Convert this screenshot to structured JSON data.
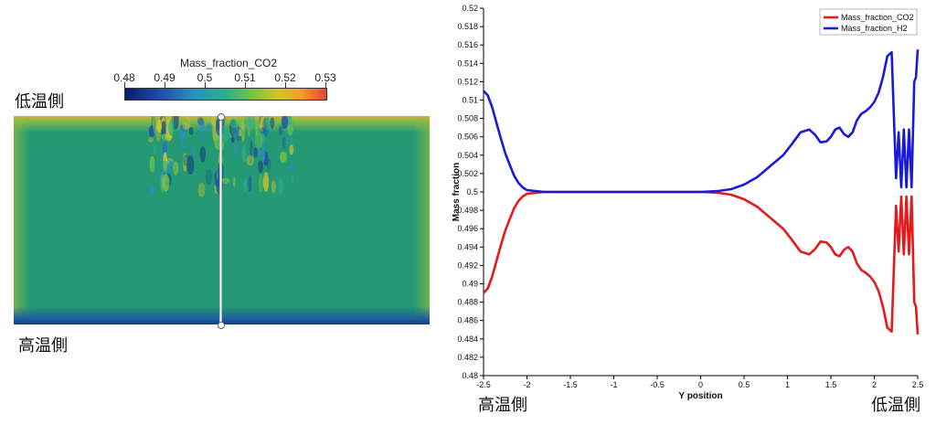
{
  "left_view": {
    "colorbar": {
      "title": "Mass_fraction_CO2",
      "ticks": [
        "0.48",
        "0.49",
        "0.5",
        "0.51",
        "0.52",
        "0.53"
      ]
    },
    "label_top": "低温側",
    "label_bottom": "高温側"
  },
  "chart_labels": {
    "left_end": "高温側",
    "right_end": "低温側"
  },
  "chart_data": {
    "type": "line",
    "title": "",
    "xlabel": "Y position",
    "ylabel": "Mass fraction",
    "xlim": [
      -2.5,
      2.5
    ],
    "ylim": [
      0.48,
      0.52
    ],
    "xticks": [
      "-2.5",
      "-2",
      "-1.5",
      "-1",
      "-0.5",
      "0",
      "0.5",
      "1",
      "1.5",
      "2",
      "2.5"
    ],
    "yticks": [
      "0.48",
      "0.482",
      "0.484",
      "0.486",
      "0.488",
      "0.49",
      "0.492",
      "0.494",
      "0.496",
      "0.498",
      "0.5",
      "0.502",
      "0.504",
      "0.506",
      "0.508",
      "0.51",
      "0.512",
      "0.514",
      "0.516",
      "0.518",
      "0.52"
    ],
    "grid": false,
    "legend": "top-right",
    "series": [
      {
        "name": "Mass_fraction_CO2",
        "color": "#e41a1c",
        "x": [
          -2.5,
          -2.45,
          -2.4,
          -2.35,
          -2.3,
          -2.25,
          -2.2,
          -2.15,
          -2.1,
          -2.05,
          -2.0,
          -1.9,
          -1.8,
          -1.5,
          -1.0,
          -0.5,
          0.0,
          0.2,
          0.35,
          0.5,
          0.65,
          0.8,
          0.95,
          1.05,
          1.15,
          1.25,
          1.32,
          1.38,
          1.45,
          1.5,
          1.55,
          1.6,
          1.65,
          1.7,
          1.75,
          1.8,
          1.85,
          1.9,
          1.95,
          2.0,
          2.05,
          2.1,
          2.15,
          2.2,
          2.25,
          2.28,
          2.31,
          2.34,
          2.37,
          2.4,
          2.43,
          2.46,
          2.48,
          2.5
        ],
        "values": [
          0.489,
          0.4895,
          0.4908,
          0.4925,
          0.4942,
          0.4958,
          0.497,
          0.4982,
          0.499,
          0.4995,
          0.4998,
          0.4999,
          0.5,
          0.5,
          0.5,
          0.5,
          0.5,
          0.4999,
          0.4997,
          0.4992,
          0.4984,
          0.4972,
          0.496,
          0.4948,
          0.4935,
          0.4932,
          0.4938,
          0.4946,
          0.4945,
          0.494,
          0.4932,
          0.493,
          0.4937,
          0.494,
          0.4935,
          0.4922,
          0.4915,
          0.4912,
          0.4908,
          0.4902,
          0.4892,
          0.4875,
          0.4852,
          0.4848,
          0.4985,
          0.4935,
          0.4995,
          0.4932,
          0.4995,
          0.4932,
          0.4995,
          0.488,
          0.4875,
          0.4845
        ]
      },
      {
        "name": "Mass_fraction_H2",
        "color": "#1a1adb",
        "x": [
          -2.5,
          -2.45,
          -2.4,
          -2.35,
          -2.3,
          -2.25,
          -2.2,
          -2.15,
          -2.1,
          -2.05,
          -2.0,
          -1.9,
          -1.8,
          -1.5,
          -1.0,
          -0.5,
          0.0,
          0.2,
          0.35,
          0.5,
          0.65,
          0.8,
          0.95,
          1.05,
          1.15,
          1.25,
          1.32,
          1.38,
          1.45,
          1.5,
          1.55,
          1.6,
          1.65,
          1.7,
          1.75,
          1.8,
          1.85,
          1.9,
          1.95,
          2.0,
          2.05,
          2.1,
          2.15,
          2.2,
          2.25,
          2.28,
          2.31,
          2.34,
          2.37,
          2.4,
          2.43,
          2.46,
          2.48,
          2.5
        ],
        "values": [
          0.511,
          0.5105,
          0.5092,
          0.5075,
          0.5058,
          0.5042,
          0.503,
          0.5018,
          0.501,
          0.5005,
          0.5002,
          0.5001,
          0.5,
          0.5,
          0.5,
          0.5,
          0.5,
          0.5001,
          0.5003,
          0.5008,
          0.5016,
          0.5028,
          0.504,
          0.5052,
          0.5065,
          0.5068,
          0.5062,
          0.5054,
          0.5055,
          0.506,
          0.5068,
          0.507,
          0.5063,
          0.506,
          0.5065,
          0.5078,
          0.5085,
          0.5088,
          0.5092,
          0.5098,
          0.5108,
          0.5125,
          0.5148,
          0.5152,
          0.5015,
          0.5065,
          0.5005,
          0.5068,
          0.5005,
          0.5068,
          0.5005,
          0.512,
          0.5125,
          0.5155
        ]
      }
    ]
  }
}
